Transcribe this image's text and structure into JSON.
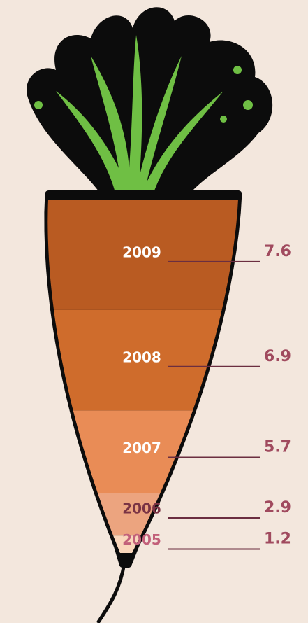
{
  "chart_data": {
    "type": "pictorial-stack",
    "categories": [
      "2005",
      "2006",
      "2007",
      "2008",
      "2009"
    ],
    "values": [
      1.2,
      2.9,
      5.7,
      6.9,
      7.6
    ],
    "colors": [
      "#f9d6bb",
      "#eca47f",
      "#e98c56",
      "#cf6c2c",
      "#b95b22"
    ]
  }
}
